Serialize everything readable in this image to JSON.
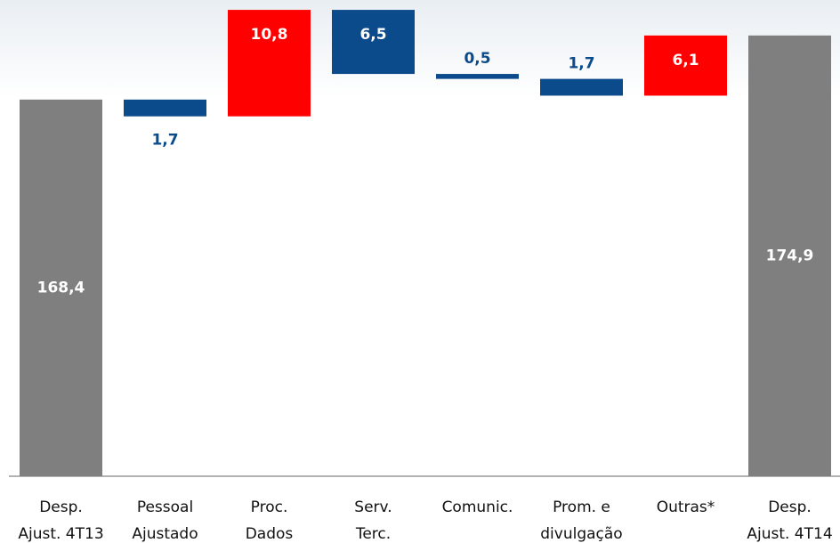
{
  "chart_data": {
    "type": "waterfall",
    "categories": [
      [
        "Desp.",
        "Ajust. 4T13"
      ],
      [
        "Pessoal",
        "Ajustado"
      ],
      [
        "Proc.",
        "Dados"
      ],
      [
        "Serv.",
        "Terc."
      ],
      [
        "Comunic."
      ],
      [
        "Prom. e",
        "divulgação"
      ],
      [
        "Outras*"
      ],
      [
        "Desp.",
        "Ajust. 4T14"
      ]
    ],
    "kinds": [
      "total",
      "decrease",
      "increase",
      "decrease",
      "decrease",
      "decrease",
      "increase",
      "total"
    ],
    "values": [
      168.4,
      1.7,
      10.8,
      6.5,
      0.5,
      1.7,
      6.1,
      174.9
    ],
    "value_labels": [
      "168,4",
      "1,7",
      "10,8",
      "6,5",
      "0,5",
      "1,7",
      "6,1",
      "174,9"
    ],
    "colors": {
      "total": "#7f7f7f",
      "increase": "#ff0000",
      "decrease": "#0b4a8b"
    },
    "ylim": [
      130.2,
      178.5
    ]
  }
}
